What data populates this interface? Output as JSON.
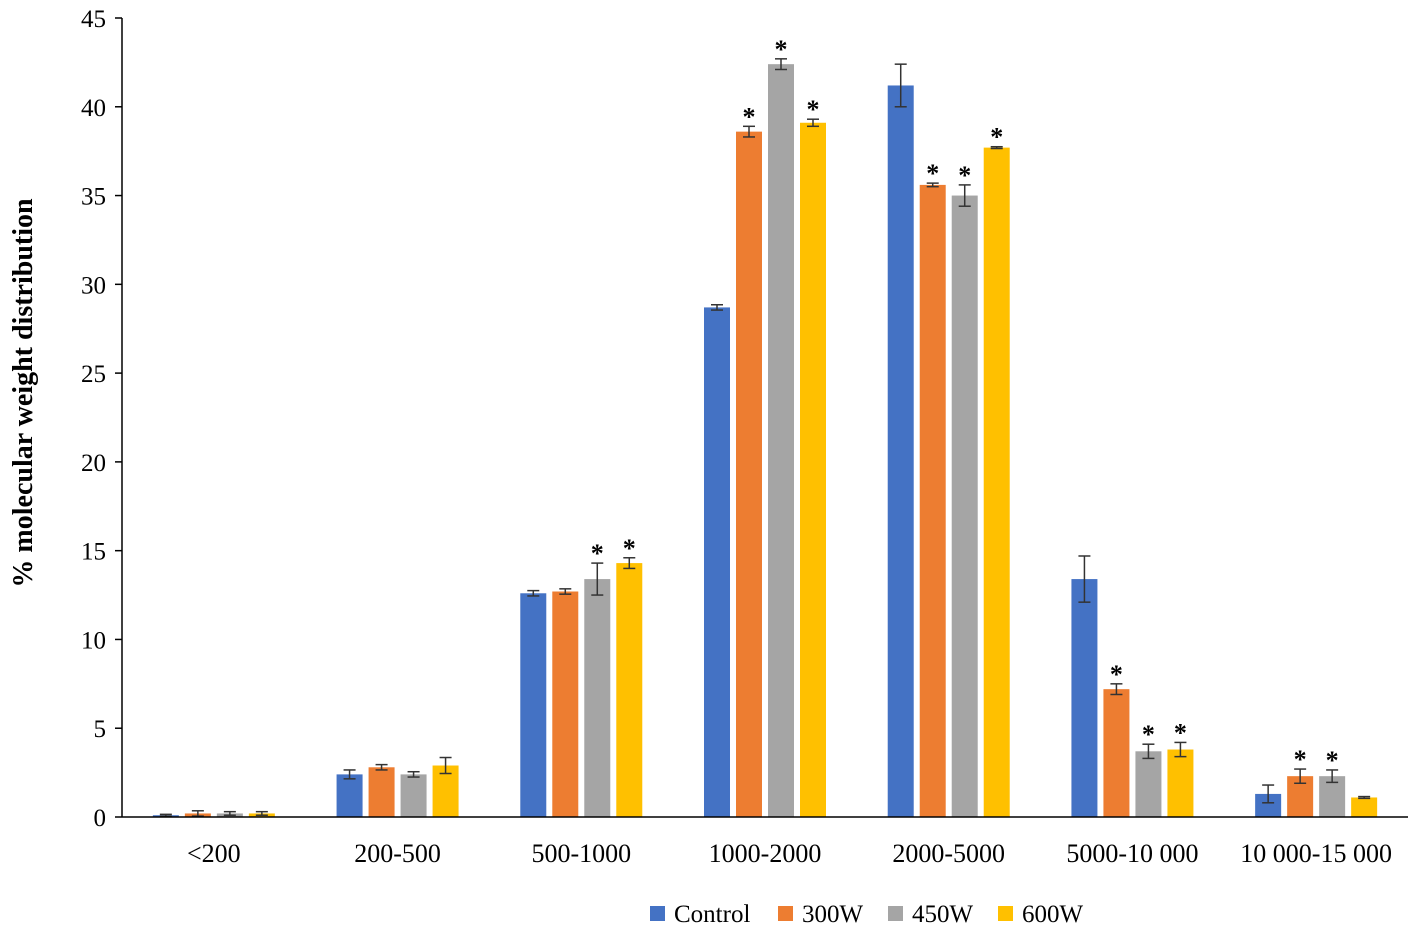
{
  "chart_data": {
    "type": "bar",
    "title": "",
    "xlabel": "",
    "ylabel": "% molecular weight distribution",
    "ylim": [
      0,
      45
    ],
    "yticks": [
      0,
      5,
      10,
      15,
      20,
      25,
      30,
      35,
      40,
      45
    ],
    "grid": false,
    "legend_position": "bottom-center",
    "categories": [
      "<200",
      "200-500",
      "500-1000",
      "1000-2000",
      "2000-5000",
      "5000-10 000",
      "10 000-15 000"
    ],
    "significance_marker": "*",
    "series": [
      {
        "name": "Control",
        "color": "#4472C4",
        "values": [
          0.1,
          2.4,
          12.6,
          28.7,
          41.2,
          13.4,
          1.3
        ],
        "errors": [
          0.05,
          0.25,
          0.15,
          0.15,
          1.2,
          1.3,
          0.5
        ],
        "significant": [
          false,
          false,
          false,
          false,
          false,
          false,
          false
        ]
      },
      {
        "name": "300W",
        "color": "#ED7D31",
        "values": [
          0.2,
          2.8,
          12.7,
          38.6,
          35.6,
          7.2,
          2.3
        ],
        "errors": [
          0.15,
          0.15,
          0.15,
          0.3,
          0.1,
          0.3,
          0.4
        ],
        "significant": [
          false,
          false,
          false,
          true,
          true,
          true,
          true
        ]
      },
      {
        "name": "450W",
        "color": "#A5A5A5",
        "values": [
          0.2,
          2.4,
          13.4,
          42.4,
          35.0,
          3.7,
          2.3
        ],
        "errors": [
          0.1,
          0.15,
          0.9,
          0.3,
          0.6,
          0.4,
          0.35
        ],
        "significant": [
          false,
          false,
          true,
          true,
          true,
          true,
          true
        ]
      },
      {
        "name": "600W",
        "color": "#FFC000",
        "values": [
          0.2,
          2.9,
          14.3,
          39.1,
          37.7,
          3.8,
          1.1
        ],
        "errors": [
          0.1,
          0.45,
          0.3,
          0.2,
          0.05,
          0.4,
          0.05
        ],
        "significant": [
          false,
          false,
          true,
          true,
          true,
          true,
          false
        ]
      }
    ]
  }
}
